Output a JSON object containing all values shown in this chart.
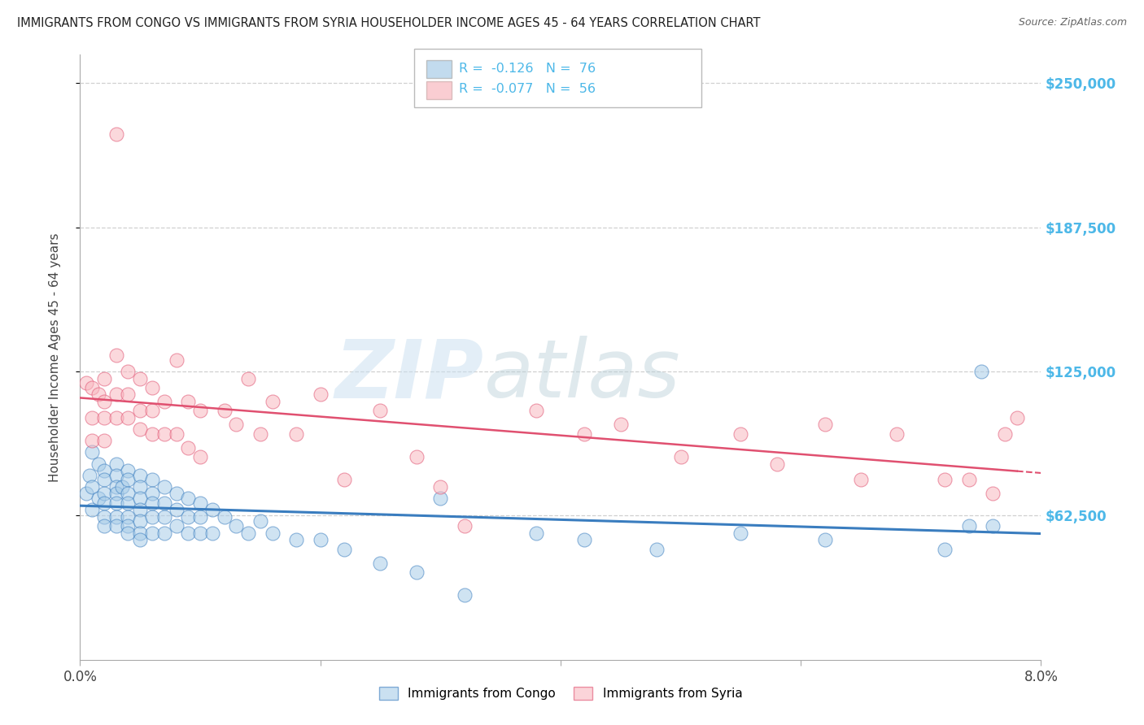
{
  "title": "IMMIGRANTS FROM CONGO VS IMMIGRANTS FROM SYRIA HOUSEHOLDER INCOME AGES 45 - 64 YEARS CORRELATION CHART",
  "source": "Source: ZipAtlas.com",
  "ylabel": "Householder Income Ages 45 - 64 years",
  "xlim": [
    0.0,
    0.08
  ],
  "ylim": [
    0,
    262500
  ],
  "yticks": [
    62500,
    125000,
    187500,
    250000
  ],
  "ytick_labels": [
    "$62,500",
    "$125,000",
    "$187,500",
    "$250,000"
  ],
  "xticks": [
    0.0,
    0.02,
    0.04,
    0.06,
    0.08
  ],
  "xtick_labels": [
    "0.0%",
    "",
    "",
    "",
    "8.0%"
  ],
  "congo_color": "#a8cce8",
  "syria_color": "#f9b8c0",
  "congo_label": "Immigrants from Congo",
  "syria_label": "Immigrants from Syria",
  "congo_R": -0.126,
  "congo_N": 76,
  "syria_R": -0.077,
  "syria_N": 56,
  "watermark_text": "ZIP",
  "watermark_text2": "atlas",
  "background_color": "#ffffff",
  "grid_color": "#d0d0d0",
  "congo_line_color": "#3a7dbf",
  "syria_line_color": "#e05070",
  "label_color": "#4db8e8",
  "congo_x": [
    0.0005,
    0.0008,
    0.001,
    0.001,
    0.001,
    0.0015,
    0.0015,
    0.002,
    0.002,
    0.002,
    0.002,
    0.002,
    0.002,
    0.003,
    0.003,
    0.003,
    0.003,
    0.003,
    0.003,
    0.003,
    0.0035,
    0.004,
    0.004,
    0.004,
    0.004,
    0.004,
    0.004,
    0.004,
    0.005,
    0.005,
    0.005,
    0.005,
    0.005,
    0.005,
    0.005,
    0.006,
    0.006,
    0.006,
    0.006,
    0.006,
    0.007,
    0.007,
    0.007,
    0.007,
    0.008,
    0.008,
    0.008,
    0.009,
    0.009,
    0.009,
    0.01,
    0.01,
    0.01,
    0.011,
    0.011,
    0.012,
    0.013,
    0.014,
    0.015,
    0.016,
    0.018,
    0.02,
    0.022,
    0.025,
    0.028,
    0.03,
    0.032,
    0.038,
    0.042,
    0.048,
    0.055,
    0.062,
    0.072,
    0.074,
    0.075,
    0.076
  ],
  "congo_y": [
    72000,
    80000,
    90000,
    75000,
    65000,
    85000,
    70000,
    82000,
    78000,
    72000,
    68000,
    62000,
    58000,
    85000,
    80000,
    75000,
    72000,
    68000,
    62000,
    58000,
    75000,
    82000,
    78000,
    72000,
    68000,
    62000,
    58000,
    55000,
    80000,
    75000,
    70000,
    65000,
    60000,
    55000,
    52000,
    78000,
    72000,
    68000,
    62000,
    55000,
    75000,
    68000,
    62000,
    55000,
    72000,
    65000,
    58000,
    70000,
    62000,
    55000,
    68000,
    62000,
    55000,
    65000,
    55000,
    62000,
    58000,
    55000,
    60000,
    55000,
    52000,
    52000,
    48000,
    42000,
    38000,
    70000,
    28000,
    55000,
    52000,
    48000,
    55000,
    52000,
    48000,
    58000,
    125000,
    58000
  ],
  "syria_x": [
    0.0005,
    0.001,
    0.001,
    0.001,
    0.0015,
    0.002,
    0.002,
    0.002,
    0.002,
    0.003,
    0.003,
    0.003,
    0.003,
    0.004,
    0.004,
    0.004,
    0.005,
    0.005,
    0.005,
    0.006,
    0.006,
    0.006,
    0.007,
    0.007,
    0.008,
    0.008,
    0.009,
    0.009,
    0.01,
    0.01,
    0.012,
    0.013,
    0.014,
    0.015,
    0.016,
    0.018,
    0.02,
    0.022,
    0.025,
    0.028,
    0.03,
    0.032,
    0.038,
    0.042,
    0.045,
    0.05,
    0.055,
    0.058,
    0.062,
    0.065,
    0.068,
    0.072,
    0.074,
    0.076,
    0.077,
    0.078
  ],
  "syria_y": [
    120000,
    118000,
    105000,
    95000,
    115000,
    122000,
    112000,
    105000,
    95000,
    228000,
    132000,
    115000,
    105000,
    125000,
    115000,
    105000,
    122000,
    108000,
    100000,
    118000,
    108000,
    98000,
    112000,
    98000,
    130000,
    98000,
    112000,
    92000,
    108000,
    88000,
    108000,
    102000,
    122000,
    98000,
    112000,
    98000,
    115000,
    78000,
    108000,
    88000,
    75000,
    58000,
    108000,
    98000,
    102000,
    88000,
    98000,
    85000,
    102000,
    78000,
    98000,
    78000,
    78000,
    72000,
    98000,
    105000
  ]
}
